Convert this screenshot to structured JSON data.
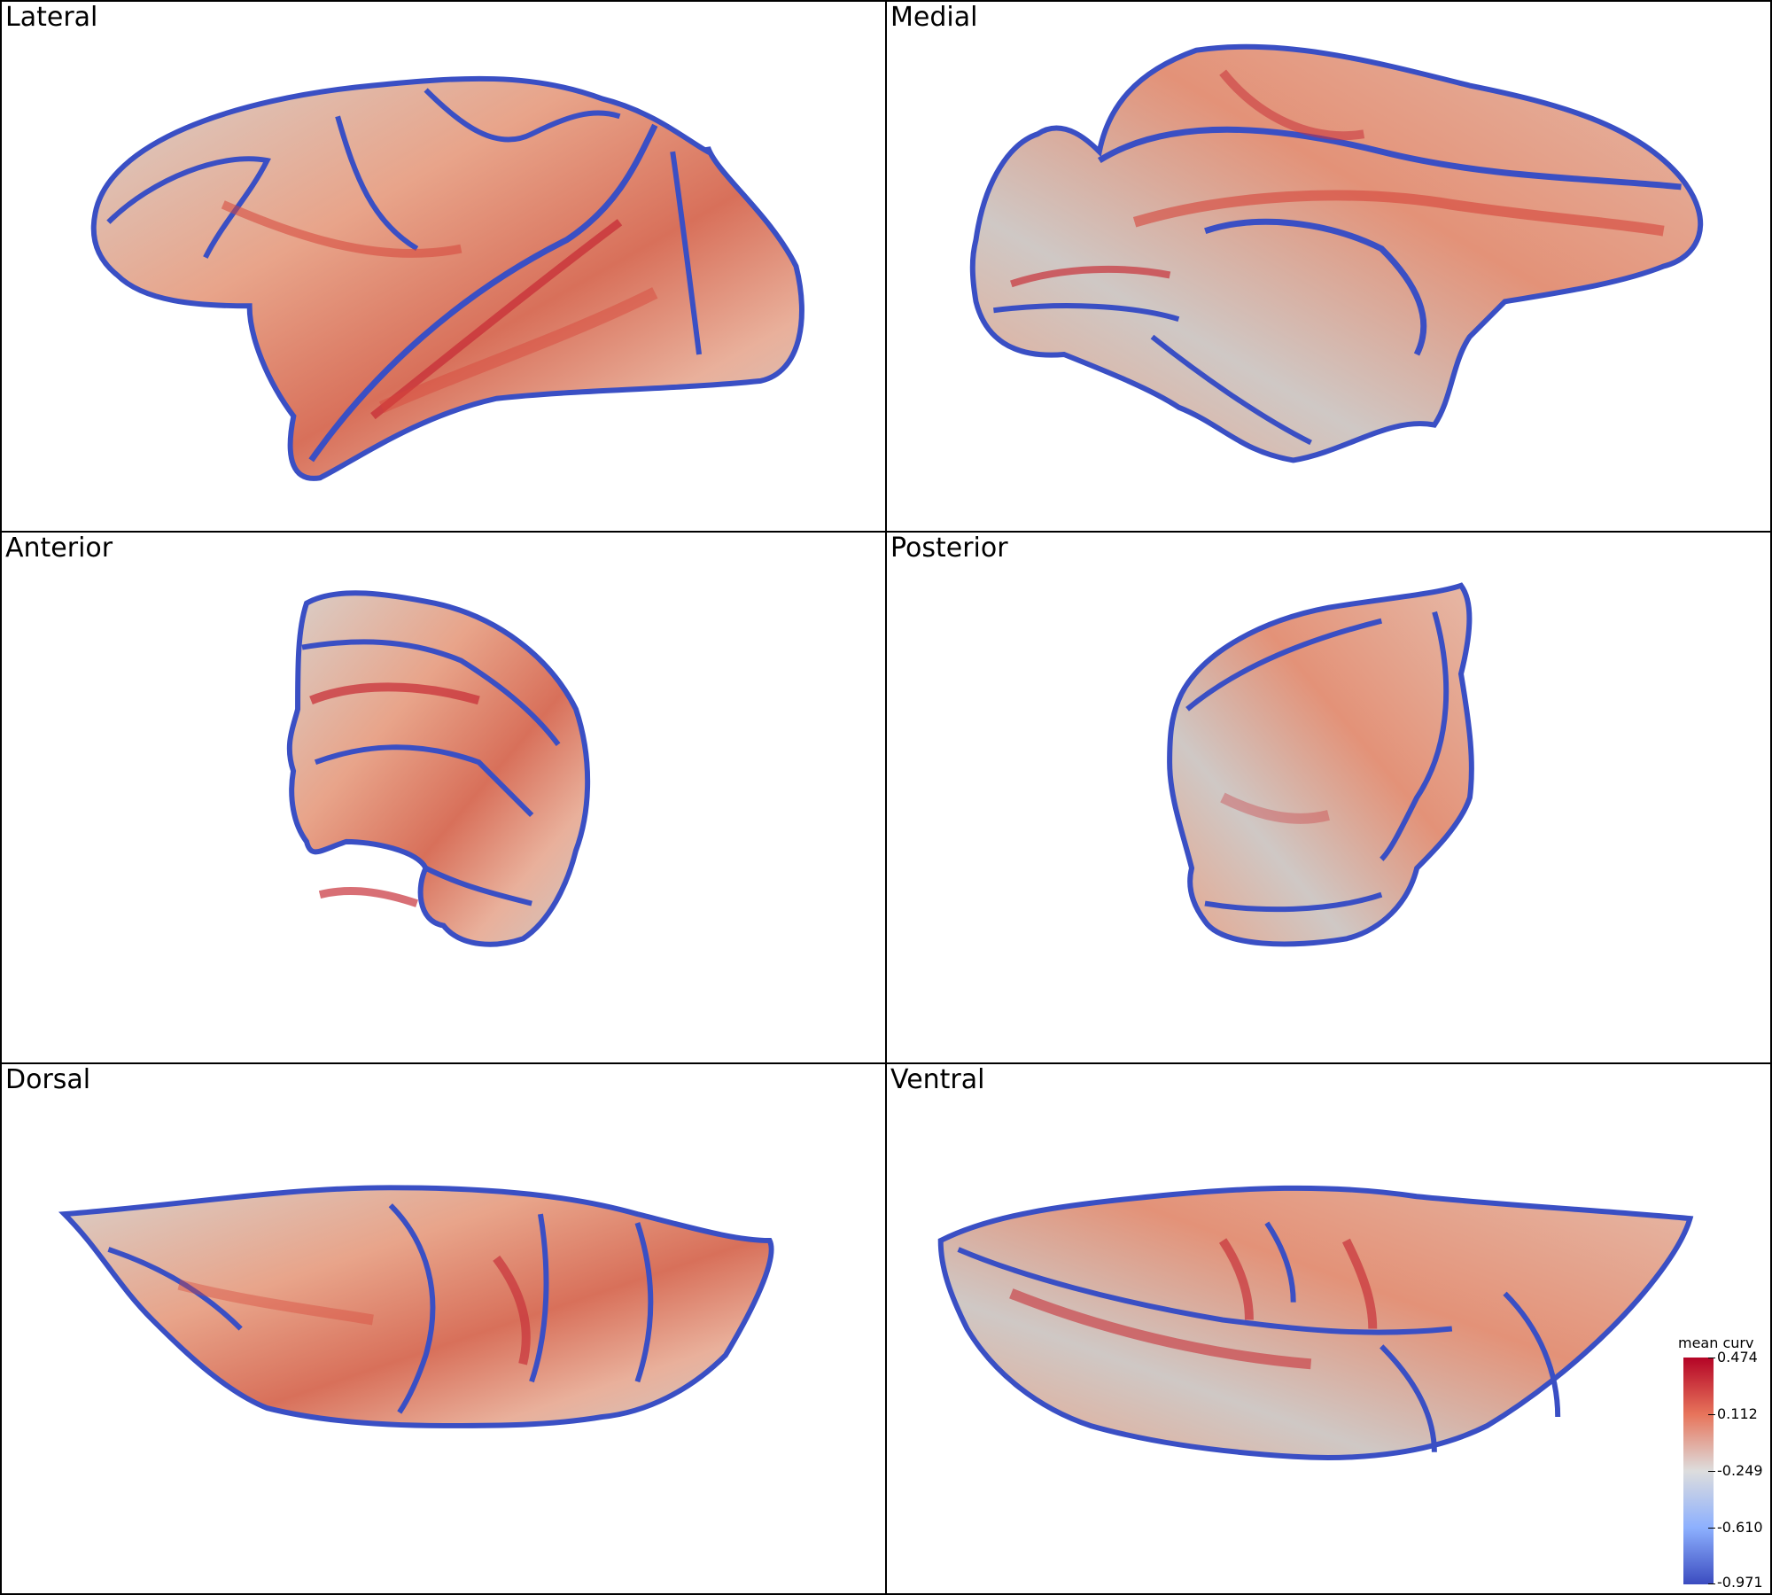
{
  "panels": [
    {
      "label": "Lateral"
    },
    {
      "label": "Medial"
    },
    {
      "label": "Anterior"
    },
    {
      "label": "Posterior"
    },
    {
      "label": "Dorsal"
    },
    {
      "label": "Ventral"
    }
  ],
  "colorbar": {
    "title": "mean curv",
    "ticks": [
      "0.474",
      "0.112",
      "-0.249",
      "-0.610",
      "-0.971"
    ],
    "max": 0.474,
    "min": -0.971,
    "colors": {
      "high": "#b40426",
      "mid": "#dddddd",
      "low": "#3b4cc0"
    }
  },
  "colors": {
    "surface_base": "#e8a48a",
    "gyral_crown": "#d6453a",
    "sulcal_fundus": "#3a4fc4",
    "neutral": "#d9cfc9"
  }
}
